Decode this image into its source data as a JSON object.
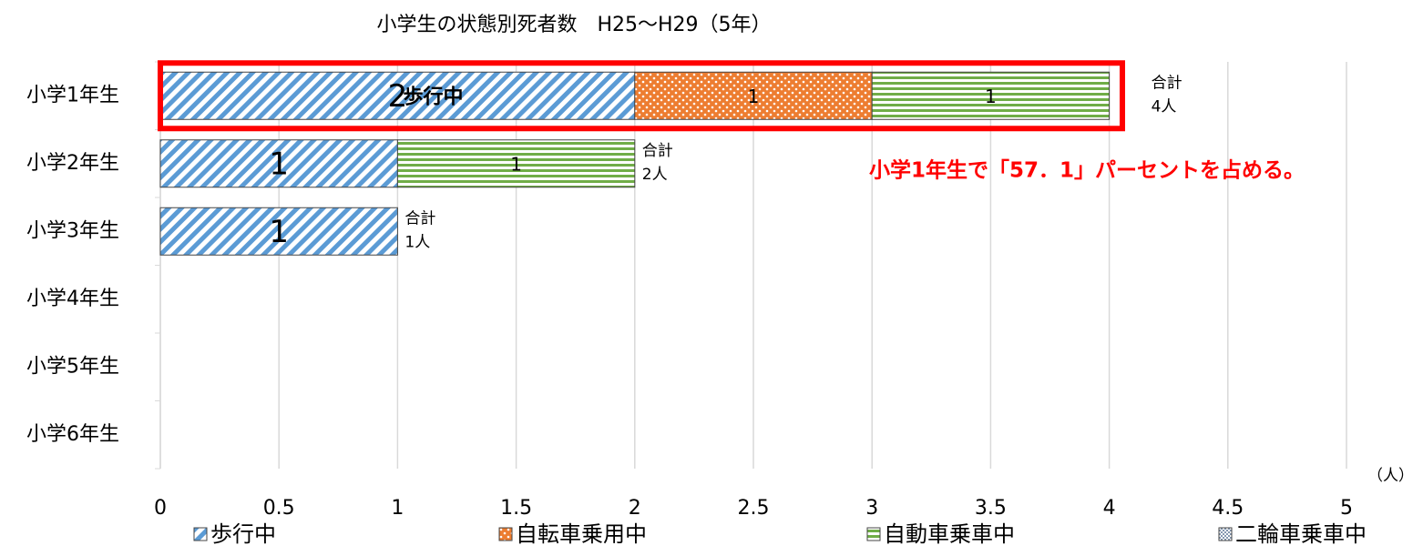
{
  "chart_data": {
    "type": "stacked_barh",
    "title": "小学生の状態別死者数　H25～H29（5年）",
    "categories": [
      "小学1年生",
      "小学2年生",
      "小学3年生",
      "小学4年生",
      "小学5年生",
      "小学6年生"
    ],
    "series": [
      {
        "name": "歩行中",
        "color": "#5b9bd5",
        "pattern": "diagonal",
        "values": [
          2,
          1,
          1,
          0,
          0,
          0
        ]
      },
      {
        "name": "自転車乗用中",
        "color": "#ed7d31",
        "pattern": "dots",
        "values": [
          1,
          0,
          0,
          0,
          0,
          0
        ]
      },
      {
        "name": "自動車乗車中",
        "color": "#70ad47",
        "pattern": "horizontal",
        "values": [
          1,
          1,
          0,
          0,
          0,
          0
        ]
      },
      {
        "name": "二輪車乗車中",
        "color": "#8497b0",
        "pattern": "checker",
        "values": [
          0,
          0,
          0,
          0,
          0,
          0
        ]
      }
    ],
    "xlim": [
      0,
      5
    ],
    "xticks": [
      0,
      0.5,
      1,
      1.5,
      2,
      2.5,
      3,
      3.5,
      4,
      4.5,
      5
    ],
    "grid": true,
    "x_unit": "（人）",
    "bar_annotation": "歩行中",
    "total_title": "合計",
    "totals": [
      {
        "value": 4,
        "label": "4人"
      },
      {
        "value": 2,
        "label": "2人"
      },
      {
        "value": 1,
        "label": "1人"
      }
    ],
    "annotation": "小学1年生で「57．1」パーセントを占める。",
    "legend": "bottom"
  }
}
